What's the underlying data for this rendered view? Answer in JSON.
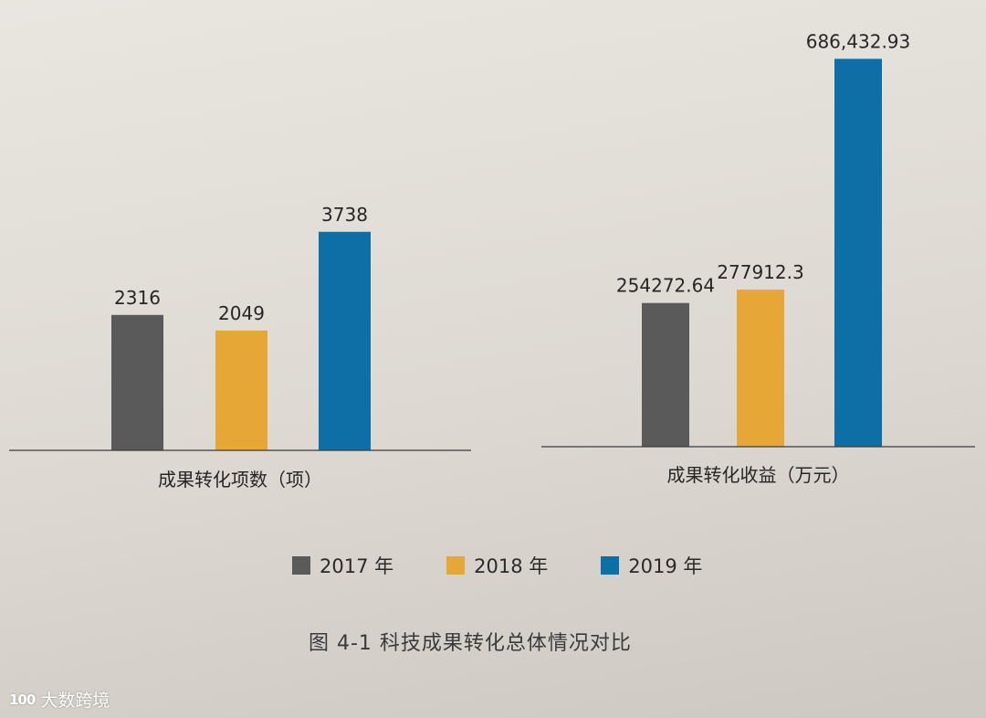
{
  "chart_data": [
    {
      "type": "bar",
      "title": "",
      "xlabel": "成果转化项数（项）",
      "ylabel": "",
      "categories": [
        "2017 年",
        "2018 年",
        "2019 年"
      ],
      "values": [
        2316,
        2049,
        3738
      ],
      "value_labels": [
        "2316",
        "2049",
        "3738"
      ],
      "colors": [
        "#5a5a5a",
        "#e6a737",
        "#0d6fa5"
      ],
      "ylim": [
        0,
        4000
      ]
    },
    {
      "type": "bar",
      "title": "",
      "xlabel": "成果转化收益（万元）",
      "ylabel": "",
      "categories": [
        "2017 年",
        "2018 年",
        "2019 年"
      ],
      "values": [
        254272.64,
        277912.3,
        686432.93
      ],
      "value_labels": [
        "254272.64",
        "277912.3",
        "686,432.93"
      ],
      "colors": [
        "#5a5a5a",
        "#e6a737",
        "#0d6fa5"
      ],
      "ylim": [
        0,
        700000
      ]
    }
  ],
  "legend": {
    "items": [
      {
        "label": "2017 年",
        "color": "#5a5a5a"
      },
      {
        "label": "2018 年",
        "color": "#e6a737"
      },
      {
        "label": "2019 年",
        "color": "#0d6fa5"
      }
    ]
  },
  "caption": "图 4-1  科技成果转化总体情况对比",
  "watermark": {
    "logo": "100",
    "text": "大数跨境"
  }
}
